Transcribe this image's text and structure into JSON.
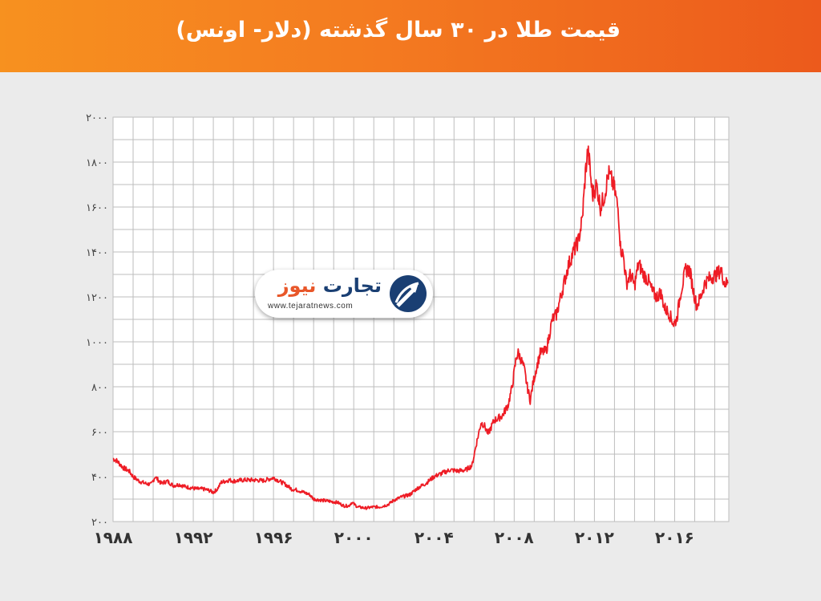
{
  "header": {
    "title": "قیمت طلا در ۳۰ سال گذشته (دلار- اونس)",
    "bg_start": "#f7911f",
    "bg_end": "#ec5a1c"
  },
  "logo": {
    "brand_part1": "تجارت",
    "brand_part2": "نیوز",
    "website": "www.tejaratnews.com",
    "icon": "upward-arrow-emblem-icon"
  },
  "chart_data": {
    "type": "line",
    "title": "قیمت طلا در ۳۰ سال گذشته (دلار- اونس)",
    "xlabel": "",
    "ylabel": "",
    "xlim": [
      1988,
      2018.7
    ],
    "ylim": [
      200,
      2000
    ],
    "grid": true,
    "x_ticks": [
      1988,
      1992,
      1996,
      2000,
      2004,
      2008,
      2012,
      2016
    ],
    "x_tick_labels": [
      "۱۹۸۸",
      "۱۹۹۲",
      "۱۹۹۶",
      "۲۰۰۰",
      "۲۰۰۴",
      "۲۰۰۸",
      "۲۰۱۲",
      "۲۰۱۶"
    ],
    "y_ticks": [
      200,
      400,
      600,
      800,
      1000,
      1200,
      1400,
      1600,
      1800,
      2000
    ],
    "y_tick_labels": [
      "۲۰۰",
      "۴۰۰",
      "۶۰۰",
      "۸۰۰",
      "۱۰۰۰",
      "۱۲۰۰",
      "۱۴۰۰",
      "۱۶۰۰",
      "۱۸۰۰",
      "۲۰۰۰"
    ],
    "line_color": "#ee1c25",
    "series": [
      {
        "x": [
          1988.0,
          1988.2,
          1988.5,
          1988.8,
          1989.0,
          1989.3,
          1989.6,
          1989.9,
          1990.1,
          1990.4,
          1990.7,
          1991.0,
          1991.3,
          1991.6,
          1991.9,
          1992.2,
          1992.5,
          1992.8,
          1993.0,
          1993.2,
          1993.4,
          1993.6,
          1993.8,
          1994.0,
          1994.5,
          1995.0,
          1995.5,
          1996.0,
          1996.3,
          1996.6,
          1996.9,
          1997.2,
          1997.5,
          1997.8,
          1998.0,
          1998.4,
          1998.8,
          1999.2,
          1999.5,
          1999.75,
          1999.9,
          2000.2,
          2000.6,
          2001.0,
          2001.3,
          2001.7,
          2002.0,
          2002.4,
          2002.8,
          2003.2,
          2003.6,
          2004.0,
          2004.4,
          2004.8,
          2005.2,
          2005.6,
          2005.9,
          2006.1,
          2006.35,
          2006.5,
          2006.7,
          2007.0,
          2007.4,
          2007.7,
          2007.9,
          2008.1,
          2008.2,
          2008.35,
          2008.5,
          2008.65,
          2008.8,
          2008.95,
          2009.1,
          2009.3,
          2009.6,
          2009.9,
          2010.1,
          2010.4,
          2010.7,
          2010.95,
          2011.2,
          2011.4,
          2011.55,
          2011.67,
          2011.75,
          2011.9,
          2012.1,
          2012.3,
          2012.5,
          2012.7,
          2012.85,
          2013.0,
          2013.2,
          2013.3,
          2013.45,
          2013.6,
          2013.8,
          2014.0,
          2014.2,
          2014.45,
          2014.7,
          2014.9,
          2015.1,
          2015.3,
          2015.5,
          2015.7,
          2015.95,
          2016.1,
          2016.3,
          2016.55,
          2016.75,
          2016.95,
          2017.1,
          2017.3,
          2017.5,
          2017.7,
          2017.9,
          2018.1,
          2018.3,
          2018.5,
          2018.65
        ],
        "y": [
          480,
          470,
          440,
          425,
          400,
          380,
          370,
          365,
          400,
          370,
          380,
          360,
          365,
          355,
          350,
          345,
          345,
          338,
          330,
          345,
          375,
          380,
          385,
          380,
          385,
          385,
          382,
          395,
          380,
          365,
          345,
          340,
          330,
          320,
          300,
          295,
          290,
          285,
          270,
          270,
          285,
          265,
          260,
          265,
          265,
          275,
          295,
          310,
          320,
          350,
          370,
          400,
          415,
          430,
          425,
          430,
          450,
          540,
          640,
          630,
          590,
          650,
          670,
          720,
          800,
          930,
          950,
          920,
          880,
          800,
          740,
          820,
          880,
          950,
          960,
          1100,
          1120,
          1230,
          1340,
          1400,
          1450,
          1550,
          1750,
          1850,
          1800,
          1650,
          1700,
          1600,
          1650,
          1750,
          1720,
          1680,
          1580,
          1420,
          1380,
          1260,
          1300,
          1250,
          1350,
          1300,
          1270,
          1220,
          1200,
          1220,
          1150,
          1130,
          1080,
          1100,
          1220,
          1320,
          1320,
          1220,
          1160,
          1200,
          1260,
          1280,
          1290,
          1300,
          1320,
          1260,
          1260
        ]
      }
    ]
  }
}
